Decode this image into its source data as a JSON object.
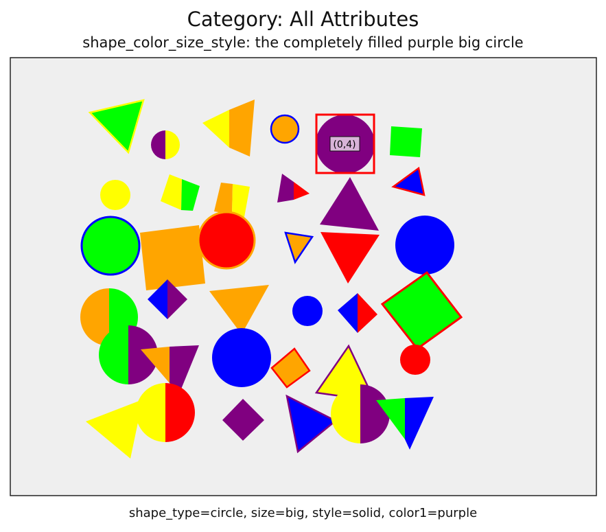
{
  "header": {
    "title": "Category: All Attributes",
    "subtitle": "shape_color_size_style: the completely filled purple big circle"
  },
  "footer": {
    "caption": "shape_type=circle, size=big, style=solid, color1=purple"
  },
  "colors": {
    "panel": "#efefef",
    "frame": "#222222",
    "highlight": "#ff0000",
    "green": "#00ff00",
    "yellow": "#ffff00",
    "orange": "#ffa500",
    "purple": "#800080",
    "blue": "#0000ff",
    "red": "#ff0000"
  },
  "target": {
    "label": "(0,4)",
    "shape": "circle",
    "color": "purple",
    "style": "solid",
    "size": "big"
  },
  "shapes": [
    {
      "name": "triangle-green-yellow-outline",
      "type": "triangle",
      "fill": "green",
      "stroke": "yellow"
    },
    {
      "name": "half-circle-purple-yellow",
      "type": "circle",
      "fill": "purple",
      "fill2": "yellow"
    },
    {
      "name": "triangle-yellow-orange",
      "type": "triangle",
      "fill": "yellow",
      "fill2": "orange"
    },
    {
      "name": "circle-orange-blue-outline",
      "type": "circle",
      "fill": "orange",
      "stroke": "blue"
    },
    {
      "name": "target-purple-circle",
      "type": "circle",
      "fill": "purple"
    },
    {
      "name": "square-green",
      "type": "square",
      "fill": "green"
    },
    {
      "name": "circle-yellow-small",
      "type": "circle",
      "fill": "yellow"
    },
    {
      "name": "square-yellow-green",
      "type": "square",
      "fill": "yellow",
      "fill2": "green"
    },
    {
      "name": "square-orange-yellow",
      "type": "square",
      "fill": "orange",
      "fill2": "yellow"
    },
    {
      "name": "triangle-purple-red",
      "type": "triangle",
      "fill": "purple",
      "fill2": "red"
    },
    {
      "name": "triangle-blue-red-outline",
      "type": "triangle",
      "fill": "blue",
      "stroke": "red"
    },
    {
      "name": "triangle-purple-big",
      "type": "triangle",
      "fill": "purple"
    },
    {
      "name": "circle-green-blue-outline",
      "type": "circle",
      "fill": "green",
      "stroke": "blue"
    },
    {
      "name": "square-orange-big",
      "type": "square",
      "fill": "orange"
    },
    {
      "name": "circle-red-orange-outline",
      "type": "circle",
      "fill": "red",
      "stroke": "orange"
    },
    {
      "name": "triangle-orange-blue-outline",
      "type": "triangle",
      "fill": "orange",
      "stroke": "blue"
    },
    {
      "name": "triangle-red-down",
      "type": "triangle",
      "fill": "red"
    },
    {
      "name": "circle-blue-big",
      "type": "circle",
      "fill": "blue"
    },
    {
      "name": "half-circle-orange-green",
      "type": "circle",
      "fill": "orange",
      "fill2": "green"
    },
    {
      "name": "diamond-blue-purple",
      "type": "square",
      "fill": "blue",
      "fill2": "purple"
    },
    {
      "name": "triangle-orange-down",
      "type": "triangle",
      "fill": "orange"
    },
    {
      "name": "circle-blue-small",
      "type": "circle",
      "fill": "blue"
    },
    {
      "name": "diamond-blue-red",
      "type": "square",
      "fill": "blue",
      "fill2": "red"
    },
    {
      "name": "square-green-red-outline",
      "type": "square",
      "fill": "green",
      "stroke": "red"
    },
    {
      "name": "half-circle-green-purple",
      "type": "circle",
      "fill": "green",
      "fill2": "purple"
    },
    {
      "name": "triangle-orange-purple",
      "type": "triangle",
      "fill": "orange",
      "fill2": "purple"
    },
    {
      "name": "circle-blue-big-2",
      "type": "circle",
      "fill": "blue"
    },
    {
      "name": "diamond-orange-red-outline",
      "type": "square",
      "fill": "orange",
      "stroke": "red"
    },
    {
      "name": "triangle-yellow-purple-outline",
      "type": "triangle",
      "fill": "yellow",
      "stroke": "purple"
    },
    {
      "name": "circle-red-small",
      "type": "circle",
      "fill": "red"
    },
    {
      "name": "triangle-yellow-big",
      "type": "triangle",
      "fill": "yellow"
    },
    {
      "name": "half-circle-yellow-red",
      "type": "circle",
      "fill": "yellow",
      "fill2": "red"
    },
    {
      "name": "diamond-purple",
      "type": "square",
      "fill": "purple"
    },
    {
      "name": "triangle-blue-purple-outline",
      "type": "triangle",
      "fill": "blue",
      "stroke": "purple"
    },
    {
      "name": "half-circle-yellow-purple",
      "type": "circle",
      "fill": "yellow",
      "fill2": "purple"
    },
    {
      "name": "triangle-green-blue",
      "type": "triangle",
      "fill": "green",
      "fill2": "blue"
    }
  ]
}
